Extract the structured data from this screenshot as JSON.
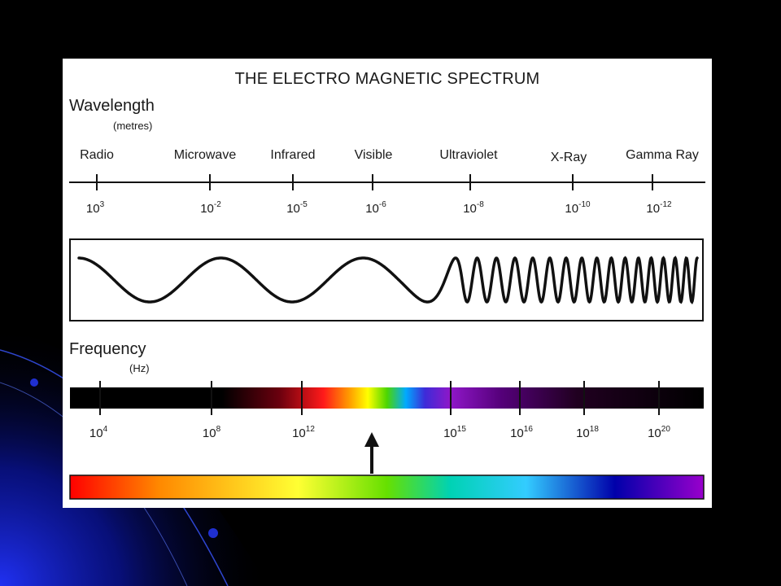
{
  "title": "THE ELECTRO MAGNETIC SPECTRUM",
  "wavelength": {
    "heading": "Wavelength",
    "unit": "(metres)",
    "bands": [
      "Radio",
      "Microwave",
      "Infrared",
      "Visible",
      "Ultraviolet",
      "X-Ray",
      "Gamma Ray"
    ],
    "ticks": [
      {
        "base": "10",
        "exp": "3"
      },
      {
        "base": "10",
        "exp": "-2"
      },
      {
        "base": "10",
        "exp": "-5"
      },
      {
        "base": "10",
        "exp": "-6"
      },
      {
        "base": "10",
        "exp": "-8"
      },
      {
        "base": "10",
        "exp": "-10"
      },
      {
        "base": "10",
        "exp": "-12"
      }
    ]
  },
  "frequency": {
    "heading": "Frequency",
    "unit": "(Hz)",
    "ticks": [
      {
        "base": "10",
        "exp": "4"
      },
      {
        "base": "10",
        "exp": "8"
      },
      {
        "base": "10",
        "exp": "12"
      },
      {
        "base": "10",
        "exp": "15"
      },
      {
        "base": "10",
        "exp": "16"
      },
      {
        "base": "10",
        "exp": "18"
      },
      {
        "base": "10",
        "exp": "20"
      }
    ]
  },
  "colors": {
    "slide_background": "#000000",
    "slide_accent": "#1a2ad8",
    "panel": "#ffffff",
    "line": "#111111",
    "spectrum": [
      "#ff0000",
      "#ff8800",
      "#ffff00",
      "#66e000",
      "#00d2b4",
      "#33ccff",
      "#0000aa",
      "#9900cc"
    ]
  }
}
